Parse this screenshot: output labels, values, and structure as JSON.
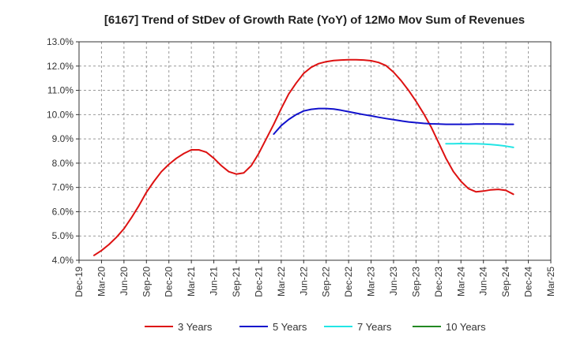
{
  "chart_data": {
    "type": "line",
    "title": "[6167]  Trend of StDev of Growth Rate (YoY) of 12Mo Mov Sum of Revenues",
    "xlabel": "",
    "ylabel": "",
    "ylim": [
      4.0,
      13.0
    ],
    "yticks": [
      "4.0%",
      "5.0%",
      "6.0%",
      "7.0%",
      "8.0%",
      "9.0%",
      "10.0%",
      "11.0%",
      "12.0%",
      "13.0%"
    ],
    "xticks": [
      "Dec-19",
      "Mar-20",
      "Jun-20",
      "Sep-20",
      "Dec-20",
      "Mar-21",
      "Jun-21",
      "Sep-21",
      "Dec-21",
      "Mar-22",
      "Jun-22",
      "Sep-22",
      "Dec-22",
      "Mar-23",
      "Jun-23",
      "Sep-23",
      "Dec-23",
      "Mar-24",
      "Jun-24",
      "Sep-24",
      "Dec-24",
      "Mar-25"
    ],
    "grid": true,
    "legend_position": "bottom",
    "series": [
      {
        "name": "3 Years",
        "color": "#dd1111",
        "points": [
          [
            2,
            4.2
          ],
          [
            3,
            4.4
          ],
          [
            4,
            4.65
          ],
          [
            5,
            4.95
          ],
          [
            6,
            5.3
          ],
          [
            7,
            5.75
          ],
          [
            8,
            6.25
          ],
          [
            9,
            6.8
          ],
          [
            10,
            7.25
          ],
          [
            11,
            7.65
          ],
          [
            12,
            7.95
          ],
          [
            13,
            8.2
          ],
          [
            14,
            8.4
          ],
          [
            15,
            8.55
          ],
          [
            16,
            8.55
          ],
          [
            17,
            8.45
          ],
          [
            18,
            8.2
          ],
          [
            19,
            7.9
          ],
          [
            20,
            7.65
          ],
          [
            21,
            7.55
          ],
          [
            22,
            7.6
          ],
          [
            23,
            7.9
          ],
          [
            24,
            8.4
          ],
          [
            25,
            9.0
          ],
          [
            26,
            9.6
          ],
          [
            27,
            10.25
          ],
          [
            28,
            10.85
          ],
          [
            29,
            11.3
          ],
          [
            30,
            11.7
          ],
          [
            31,
            11.95
          ],
          [
            32,
            12.1
          ],
          [
            33,
            12.18
          ],
          [
            34,
            12.23
          ],
          [
            35,
            12.25
          ],
          [
            36,
            12.26
          ],
          [
            37,
            12.26
          ],
          [
            38,
            12.25
          ],
          [
            39,
            12.22
          ],
          [
            40,
            12.15
          ],
          [
            41,
            12.02
          ],
          [
            42,
            11.75
          ],
          [
            43,
            11.4
          ],
          [
            44,
            11.0
          ],
          [
            45,
            10.55
          ],
          [
            46,
            10.05
          ],
          [
            47,
            9.5
          ],
          [
            48,
            8.85
          ],
          [
            49,
            8.2
          ],
          [
            50,
            7.65
          ],
          [
            51,
            7.25
          ],
          [
            52,
            6.95
          ],
          [
            53,
            6.82
          ],
          [
            54,
            6.85
          ],
          [
            55,
            6.9
          ],
          [
            56,
            6.92
          ],
          [
            57,
            6.88
          ],
          [
            58,
            6.72
          ]
        ]
      },
      {
        "name": "5 Years",
        "color": "#1111cc",
        "points": [
          [
            26,
            9.2
          ],
          [
            27,
            9.55
          ],
          [
            28,
            9.8
          ],
          [
            29,
            10.0
          ],
          [
            30,
            10.15
          ],
          [
            31,
            10.22
          ],
          [
            32,
            10.25
          ],
          [
            33,
            10.25
          ],
          [
            34,
            10.23
          ],
          [
            35,
            10.18
          ],
          [
            36,
            10.12
          ],
          [
            37,
            10.06
          ],
          [
            38,
            10.0
          ],
          [
            39,
            9.95
          ],
          [
            40,
            9.89
          ],
          [
            41,
            9.84
          ],
          [
            42,
            9.79
          ],
          [
            43,
            9.74
          ],
          [
            44,
            9.7
          ],
          [
            45,
            9.67
          ],
          [
            46,
            9.64
          ],
          [
            47,
            9.62
          ],
          [
            48,
            9.61
          ],
          [
            49,
            9.6
          ],
          [
            50,
            9.6
          ],
          [
            51,
            9.6
          ],
          [
            52,
            9.6
          ],
          [
            53,
            9.61
          ],
          [
            54,
            9.61
          ],
          [
            55,
            9.61
          ],
          [
            56,
            9.61
          ],
          [
            57,
            9.6
          ],
          [
            58,
            9.6
          ]
        ]
      },
      {
        "name": "7 Years",
        "color": "#22e5e5",
        "points": [
          [
            49,
            8.8
          ],
          [
            50,
            8.8
          ],
          [
            51,
            8.81
          ],
          [
            52,
            8.8
          ],
          [
            53,
            8.8
          ],
          [
            54,
            8.79
          ],
          [
            55,
            8.77
          ],
          [
            56,
            8.74
          ],
          [
            57,
            8.7
          ],
          [
            58,
            8.65
          ]
        ]
      },
      {
        "name": "10 Years",
        "color": "#228822",
        "points": []
      }
    ]
  }
}
